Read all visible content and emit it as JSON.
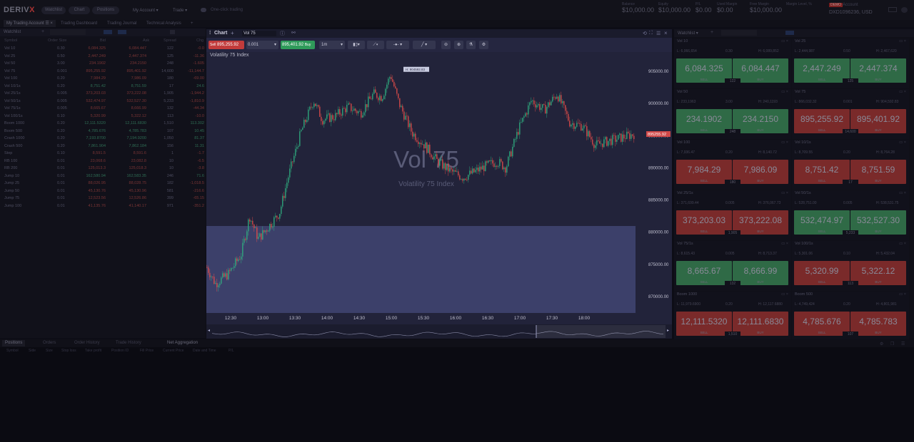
{
  "header": {
    "logo_a": "DERIV",
    "logo_b": "X",
    "nav": [
      "Watchlist",
      "Chart",
      "Positions"
    ],
    "dropdowns": [
      "My Account",
      "Trade"
    ],
    "one_click": "One-click trading",
    "stats": [
      {
        "label": "Balance",
        "value": "$10,000.00"
      },
      {
        "label": "Equity",
        "value": "$10,000.00"
      },
      {
        "label": "P/L",
        "value": "$0.00"
      },
      {
        "label": "Used Margin",
        "value": "$0.00"
      },
      {
        "label": "Free Margin",
        "value": "$10,000.00"
      },
      {
        "label": "Margin Level, %",
        "value": ""
      }
    ],
    "account_badge": "DEMO",
    "account_label": "Account",
    "account_id": "DXD1096236, USD"
  },
  "tabs": [
    "My Trading Account",
    "Trading Dashboard",
    "Trading Journal",
    "Technical Analysis"
  ],
  "watchlist": {
    "title": "Watchlist",
    "columns": [
      "Symbol",
      "Order Size",
      "Bid",
      "Ask",
      "Spread",
      "Chg"
    ],
    "rows": [
      {
        "s": "Vol 10",
        "o": "0.30",
        "b": "6,084.325",
        "a": "6,084.447",
        "sp": "122",
        "c": "-0.0",
        "up": false
      },
      {
        "s": "Vol 25",
        "o": "0.50",
        "b": "2,447.249",
        "a": "2,447.374",
        "sp": "125",
        "c": "-11.36",
        "up": false
      },
      {
        "s": "Vol 50",
        "o": "3.00",
        "b": "234.1902",
        "a": "234.2150",
        "sp": "248",
        "c": "-1.605",
        "up": false
      },
      {
        "s": "Vol 75",
        "o": "0.001",
        "b": "895,255.92",
        "a": "895,401.92",
        "sp": "14,600",
        "c": "-11,144.7",
        "up": false
      },
      {
        "s": "Vol 100",
        "o": "0.20",
        "b": "7,984.29",
        "a": "7,986.09",
        "sp": "180",
        "c": "-69.00",
        "up": false
      },
      {
        "s": "Vol 10/1s",
        "o": "0.20",
        "b": "8,751.42",
        "a": "8,751.59",
        "sp": "17",
        "c": "24.6",
        "up": true
      },
      {
        "s": "Vol 25/1s",
        "o": "0.005",
        "b": "373,203.03",
        "a": "373,222.08",
        "sp": "1,905",
        "c": "-1,944.2",
        "up": false
      },
      {
        "s": "Vol 50/1s",
        "o": "0.005",
        "b": "532,474.97",
        "a": "532,527.30",
        "sp": "5,233",
        "c": "-1,810.9",
        "up": false
      },
      {
        "s": "Vol 75/1s",
        "o": "0.005",
        "b": "8,665.67",
        "a": "8,666.99",
        "sp": "132",
        "c": "-44.34",
        "up": false
      },
      {
        "s": "Vol 100/1s",
        "o": "0.10",
        "b": "5,320.99",
        "a": "5,322.12",
        "sp": "113",
        "c": "-10.0",
        "up": false
      },
      {
        "s": "Boom 1000",
        "o": "0.20",
        "b": "12,111.5320",
        "a": "12,111.6830",
        "sp": "1,510",
        "c": "113.302",
        "up": true
      },
      {
        "s": "Boom 500",
        "o": "0.20",
        "b": "4,785.676",
        "a": "4,785.783",
        "sp": "107",
        "c": "10.45",
        "up": true
      },
      {
        "s": "Crash 1000",
        "o": "0.20",
        "b": "7,193.8700",
        "a": "7,194.9200",
        "sp": "1,050",
        "c": "81.37",
        "up": true
      },
      {
        "s": "Crash 500",
        "o": "0.20",
        "b": "7,861.904",
        "a": "7,862.184",
        "sp": "156",
        "c": "11.31",
        "up": true
      },
      {
        "s": "Step",
        "o": "0.10",
        "b": "8,591.5",
        "a": "8,591.6",
        "sp": "1",
        "c": "-1.7",
        "up": false
      },
      {
        "s": "RB 100",
        "o": "0.01",
        "b": "23,068.6",
        "a": "23,082.8",
        "sp": "10",
        "c": "-6.5",
        "up": false
      },
      {
        "s": "RB 200",
        "o": "0.01",
        "b": "125,013.3",
        "a": "125,018.3",
        "sp": "10",
        "c": "-3.8",
        "up": false
      },
      {
        "s": "Jump 10",
        "o": "0.01",
        "b": "162,580.94",
        "a": "162,583.35",
        "sp": "246",
        "c": "71.6",
        "up": true
      },
      {
        "s": "Jump 25",
        "o": "0.01",
        "b": "88,026.95",
        "a": "88,028.75",
        "sp": "182",
        "c": "-1,018.5",
        "up": false
      },
      {
        "s": "Jump 50",
        "o": "0.01",
        "b": "45,130.76",
        "a": "45,130.96",
        "sp": "581",
        "c": "-216.6",
        "up": false
      },
      {
        "s": "Jump 75",
        "o": "0.01",
        "b": "12,523.56",
        "a": "12,526.86",
        "sp": "399",
        "c": "-65.15",
        "up": false
      },
      {
        "s": "Jump 100",
        "o": "0.01",
        "b": "41,135.76",
        "a": "41,140.17",
        "sp": "971",
        "c": "-351.2",
        "up": false
      }
    ]
  },
  "chart": {
    "title": "Chart",
    "symbol": "Vol 75",
    "sell_label": "Sell",
    "sell_price": "895,255.92",
    "buy_label": "Buy",
    "buy_price": "895,401.92",
    "size": "0.001",
    "timeframe": "1m",
    "instrument_name": "Volatility 75 Index",
    "watermark": "Vol 75",
    "watermark_sub": "Volatility 75 Index",
    "current_price_tag": "895255.92",
    "high_tag": "H: 904592.83",
    "y_labels": [
      "905000.00",
      "900000.00",
      "895000.00",
      "890000.00",
      "885000.00",
      "880000.00",
      "875000.00",
      "870000.00"
    ],
    "x_labels": [
      "12:30",
      "13:00",
      "13:30",
      "14:00",
      "14:30",
      "15:00",
      "15:30",
      "16:00",
      "16:30",
      "17:00",
      "17:30",
      "18:00"
    ],
    "colors": {
      "up": "#2ea37a",
      "down": "#d04848",
      "bg": "#22233a"
    }
  },
  "chart_data": {
    "type": "candlestick",
    "title": "Vol 75",
    "ylim": [
      867000,
      908000
    ],
    "x_ticks": [
      "12:30",
      "13:00",
      "13:30",
      "14:00",
      "14:30",
      "15:00",
      "15:30",
      "16:00",
      "16:30",
      "17:00",
      "17:30",
      "18:00"
    ],
    "path": [
      [
        0,
        874500
      ],
      [
        0.02,
        872000
      ],
      [
        0.05,
        873500
      ],
      [
        0.08,
        876500
      ],
      [
        0.1,
        882500
      ],
      [
        0.12,
        879000
      ],
      [
        0.14,
        880500
      ],
      [
        0.17,
        883000
      ],
      [
        0.19,
        888500
      ],
      [
        0.22,
        895500
      ],
      [
        0.25,
        900500
      ],
      [
        0.27,
        897500
      ],
      [
        0.3,
        898000
      ],
      [
        0.33,
        899500
      ],
      [
        0.36,
        898500
      ],
      [
        0.39,
        901500
      ],
      [
        0.41,
        901000
      ],
      [
        0.43,
        904500
      ],
      [
        0.45,
        900000
      ],
      [
        0.48,
        895500
      ],
      [
        0.51,
        893500
      ],
      [
        0.54,
        891000
      ],
      [
        0.57,
        889500
      ],
      [
        0.6,
        888500
      ],
      [
        0.63,
        889500
      ],
      [
        0.66,
        890500
      ],
      [
        0.68,
        891000
      ],
      [
        0.7,
        890000
      ],
      [
        0.73,
        896000
      ],
      [
        0.76,
        900500
      ],
      [
        0.79,
        899000
      ],
      [
        0.82,
        901500
      ],
      [
        0.85,
        897000
      ],
      [
        0.88,
        896500
      ],
      [
        0.91,
        893500
      ],
      [
        0.93,
        894000
      ],
      [
        0.96,
        894500
      ],
      [
        1,
        895255.92
      ]
    ]
  },
  "watch_tiles": {
    "title": "Watchlist",
    "buy_label": "BUY",
    "sell_label": "SELL",
    "tiles": [
      {
        "name": "Vol 10",
        "lo": "L: 6,066,654",
        "hi": "H: 6,089,852",
        "size": "0.30",
        "bid": "6,084.325",
        "ask": "6,084.447",
        "mid": "122",
        "color": "green"
      },
      {
        "name": "Vol 25",
        "lo": "L: 2,444,987",
        "hi": "H: 2,467,620",
        "size": "0.50",
        "bid": "2,447.249",
        "ask": "2,447.374",
        "mid": "125",
        "color": "green"
      },
      {
        "name": "Vol 50",
        "lo": "L: 233,1963",
        "hi": "H: 240,1193",
        "size": "3.00",
        "bid": "234.1902",
        "ask": "234.2150",
        "mid": "248",
        "color": "green"
      },
      {
        "name": "Vol 75",
        "lo": "L: 866,032.32",
        "hi": "H: 904,592.83",
        "size": "0.001",
        "bid": "895,255.92",
        "ask": "895,401.92",
        "mid": "14,600",
        "color": "red"
      },
      {
        "name": "Vol 100",
        "lo": "L: 7,936.47",
        "hi": "H: 8,140.72",
        "size": "0.20",
        "bid": "7,984.29",
        "ask": "7,986.09",
        "mid": "180",
        "color": "red"
      },
      {
        "name": "Vol 10/1s",
        "lo": "L: 8,709.55",
        "hi": "H: 8,764.28",
        "size": "0.20",
        "bid": "8,751.42",
        "ask": "8,751.59",
        "mid": "17",
        "color": "red"
      },
      {
        "name": "Vol 25/1s",
        "lo": "L: 371,699.44",
        "hi": "H: 376,067.73",
        "size": "0.005",
        "bid": "373,203.03",
        "ask": "373,222.08",
        "mid": "1,905",
        "color": "red"
      },
      {
        "name": "Vol 50/1s",
        "lo": "L: 528,751.00",
        "hi": "H: 538,531.75",
        "size": "0.005",
        "bid": "532,474.97",
        "ask": "532,527.30",
        "mid": "5,233",
        "color": "green"
      },
      {
        "name": "Vol 75/1s",
        "lo": "L: 8,615.43",
        "hi": "H: 8,713.37",
        "size": "0.005",
        "bid": "8,665.67",
        "ask": "8,666.99",
        "mid": "132",
        "color": "green"
      },
      {
        "name": "Vol 100/1s",
        "lo": "L: 5,301.06",
        "hi": "H: 5,432.04",
        "size": "0.10",
        "bid": "5,320.99",
        "ask": "5,322.12",
        "mid": "113",
        "color": "red"
      },
      {
        "name": "Boom 1000",
        "lo": "L: 11,979.6900",
        "hi": "H: 12,117.6880",
        "size": "0.20",
        "bid": "12,111.5320",
        "ask": "12,111.6830",
        "mid": "1,510",
        "color": "red"
      },
      {
        "name": "Boom 500",
        "lo": "L: 4,749,424",
        "hi": "H: 4,801,981",
        "size": "0.20",
        "bid": "4,785.676",
        "ask": "4,785.783",
        "mid": "107",
        "color": "red"
      }
    ]
  },
  "positions": {
    "tabs": [
      "Positions",
      "Orders",
      "Order History",
      "Trade History",
      "Net Aggregation"
    ],
    "columns": [
      "Symbol",
      "Side",
      "Size",
      "Stop loss",
      "Take profit",
      "Position ID",
      "Fill Price",
      "Current Price",
      "Date and Time",
      "P/L"
    ]
  }
}
